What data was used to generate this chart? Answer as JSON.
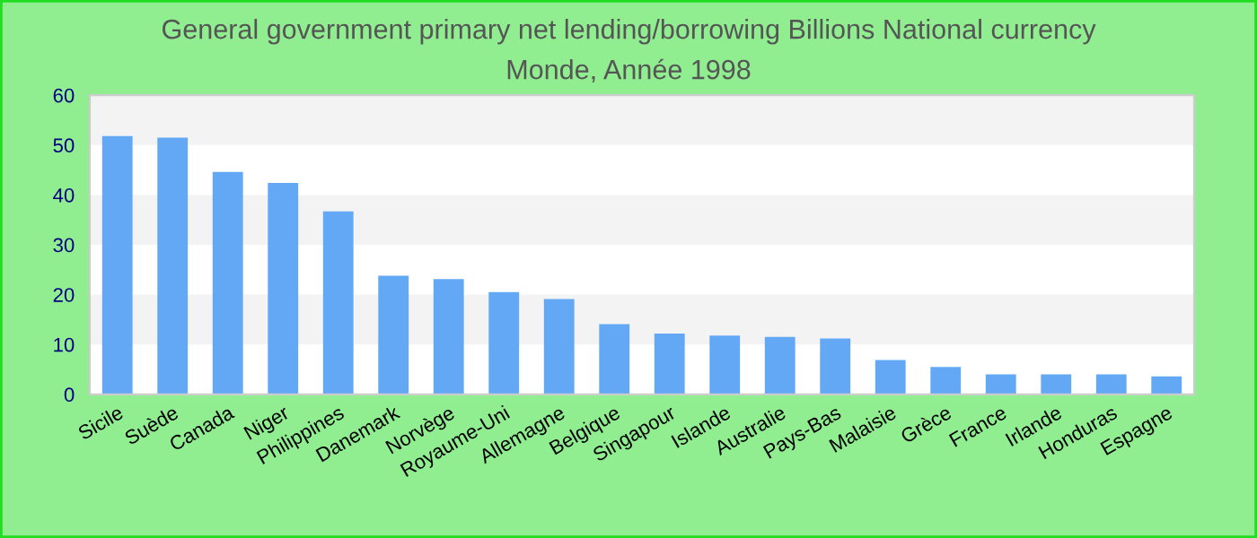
{
  "chart_data": {
    "type": "bar",
    "title": "General government primary net lending/borrowing Billions National currency",
    "subtitle": "Monde, Année 1998",
    "categories": [
      "Sicile",
      "Suède",
      "Canada",
      "Niger",
      "Philippines",
      "Danemark",
      "Norvège",
      "Royaume-Uni",
      "Allemagne",
      "Belgique",
      "Singapour",
      "Islande",
      "Australie",
      "Pays-Bas",
      "Malaisie",
      "Grèce",
      "France",
      "Irlande",
      "Honduras",
      "Espagne"
    ],
    "values": [
      51.8,
      51.5,
      44.6,
      42.4,
      36.7,
      23.8,
      23.1,
      20.5,
      19.1,
      14.1,
      12.2,
      11.8,
      11.5,
      11.2,
      6.9,
      5.5,
      4.0,
      4.0,
      4.0,
      3.6
    ],
    "color": "#62a8f4",
    "ylim": [
      0,
      60
    ],
    "yticks": [
      0,
      10,
      20,
      30,
      40,
      50,
      60
    ],
    "bands": [
      {
        "axis": "y",
        "from": 10,
        "to": 20,
        "color": "#f3f3f3"
      },
      {
        "axis": "y",
        "from": 30,
        "to": 40,
        "color": "#f3f3f3"
      },
      {
        "axis": "y",
        "from": 50,
        "to": 60,
        "color": "#f3f3f3"
      }
    ]
  }
}
